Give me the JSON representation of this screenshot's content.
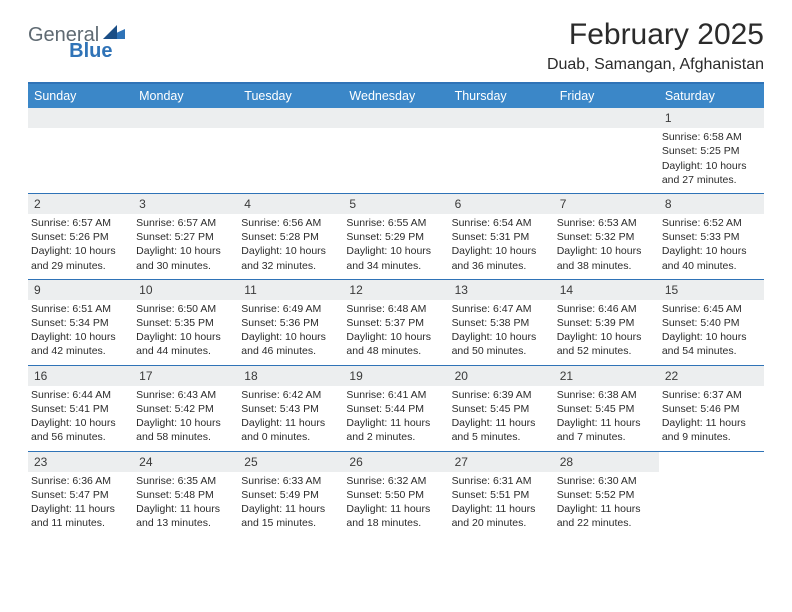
{
  "brand": {
    "part1": "General",
    "part2": "Blue"
  },
  "title": "February 2025",
  "location": "Duab, Samangan, Afghanistan",
  "colors": {
    "header_bg": "#3b87c8",
    "divider": "#2f73b7",
    "daynum_bg": "#eceeef",
    "text": "#2b2b2b",
    "logo_gray": "#5f6a72",
    "logo_blue": "#2f73b7",
    "white": "#ffffff"
  },
  "day_headers": [
    "Sunday",
    "Monday",
    "Tuesday",
    "Wednesday",
    "Thursday",
    "Friday",
    "Saturday"
  ],
  "weeks": [
    [
      null,
      null,
      null,
      null,
      null,
      null,
      {
        "n": "1",
        "sr": "Sunrise: 6:58 AM",
        "ss": "Sunset: 5:25 PM",
        "dl": "Daylight: 10 hours and 27 minutes."
      }
    ],
    [
      {
        "n": "2",
        "sr": "Sunrise: 6:57 AM",
        "ss": "Sunset: 5:26 PM",
        "dl": "Daylight: 10 hours and 29 minutes."
      },
      {
        "n": "3",
        "sr": "Sunrise: 6:57 AM",
        "ss": "Sunset: 5:27 PM",
        "dl": "Daylight: 10 hours and 30 minutes."
      },
      {
        "n": "4",
        "sr": "Sunrise: 6:56 AM",
        "ss": "Sunset: 5:28 PM",
        "dl": "Daylight: 10 hours and 32 minutes."
      },
      {
        "n": "5",
        "sr": "Sunrise: 6:55 AM",
        "ss": "Sunset: 5:29 PM",
        "dl": "Daylight: 10 hours and 34 minutes."
      },
      {
        "n": "6",
        "sr": "Sunrise: 6:54 AM",
        "ss": "Sunset: 5:31 PM",
        "dl": "Daylight: 10 hours and 36 minutes."
      },
      {
        "n": "7",
        "sr": "Sunrise: 6:53 AM",
        "ss": "Sunset: 5:32 PM",
        "dl": "Daylight: 10 hours and 38 minutes."
      },
      {
        "n": "8",
        "sr": "Sunrise: 6:52 AM",
        "ss": "Sunset: 5:33 PM",
        "dl": "Daylight: 10 hours and 40 minutes."
      }
    ],
    [
      {
        "n": "9",
        "sr": "Sunrise: 6:51 AM",
        "ss": "Sunset: 5:34 PM",
        "dl": "Daylight: 10 hours and 42 minutes."
      },
      {
        "n": "10",
        "sr": "Sunrise: 6:50 AM",
        "ss": "Sunset: 5:35 PM",
        "dl": "Daylight: 10 hours and 44 minutes."
      },
      {
        "n": "11",
        "sr": "Sunrise: 6:49 AM",
        "ss": "Sunset: 5:36 PM",
        "dl": "Daylight: 10 hours and 46 minutes."
      },
      {
        "n": "12",
        "sr": "Sunrise: 6:48 AM",
        "ss": "Sunset: 5:37 PM",
        "dl": "Daylight: 10 hours and 48 minutes."
      },
      {
        "n": "13",
        "sr": "Sunrise: 6:47 AM",
        "ss": "Sunset: 5:38 PM",
        "dl": "Daylight: 10 hours and 50 minutes."
      },
      {
        "n": "14",
        "sr": "Sunrise: 6:46 AM",
        "ss": "Sunset: 5:39 PM",
        "dl": "Daylight: 10 hours and 52 minutes."
      },
      {
        "n": "15",
        "sr": "Sunrise: 6:45 AM",
        "ss": "Sunset: 5:40 PM",
        "dl": "Daylight: 10 hours and 54 minutes."
      }
    ],
    [
      {
        "n": "16",
        "sr": "Sunrise: 6:44 AM",
        "ss": "Sunset: 5:41 PM",
        "dl": "Daylight: 10 hours and 56 minutes."
      },
      {
        "n": "17",
        "sr": "Sunrise: 6:43 AM",
        "ss": "Sunset: 5:42 PM",
        "dl": "Daylight: 10 hours and 58 minutes."
      },
      {
        "n": "18",
        "sr": "Sunrise: 6:42 AM",
        "ss": "Sunset: 5:43 PM",
        "dl": "Daylight: 11 hours and 0 minutes."
      },
      {
        "n": "19",
        "sr": "Sunrise: 6:41 AM",
        "ss": "Sunset: 5:44 PM",
        "dl": "Daylight: 11 hours and 2 minutes."
      },
      {
        "n": "20",
        "sr": "Sunrise: 6:39 AM",
        "ss": "Sunset: 5:45 PM",
        "dl": "Daylight: 11 hours and 5 minutes."
      },
      {
        "n": "21",
        "sr": "Sunrise: 6:38 AM",
        "ss": "Sunset: 5:45 PM",
        "dl": "Daylight: 11 hours and 7 minutes."
      },
      {
        "n": "22",
        "sr": "Sunrise: 6:37 AM",
        "ss": "Sunset: 5:46 PM",
        "dl": "Daylight: 11 hours and 9 minutes."
      }
    ],
    [
      {
        "n": "23",
        "sr": "Sunrise: 6:36 AM",
        "ss": "Sunset: 5:47 PM",
        "dl": "Daylight: 11 hours and 11 minutes."
      },
      {
        "n": "24",
        "sr": "Sunrise: 6:35 AM",
        "ss": "Sunset: 5:48 PM",
        "dl": "Daylight: 11 hours and 13 minutes."
      },
      {
        "n": "25",
        "sr": "Sunrise: 6:33 AM",
        "ss": "Sunset: 5:49 PM",
        "dl": "Daylight: 11 hours and 15 minutes."
      },
      {
        "n": "26",
        "sr": "Sunrise: 6:32 AM",
        "ss": "Sunset: 5:50 PM",
        "dl": "Daylight: 11 hours and 18 minutes."
      },
      {
        "n": "27",
        "sr": "Sunrise: 6:31 AM",
        "ss": "Sunset: 5:51 PM",
        "dl": "Daylight: 11 hours and 20 minutes."
      },
      {
        "n": "28",
        "sr": "Sunrise: 6:30 AM",
        "ss": "Sunset: 5:52 PM",
        "dl": "Daylight: 11 hours and 22 minutes."
      },
      null
    ]
  ]
}
